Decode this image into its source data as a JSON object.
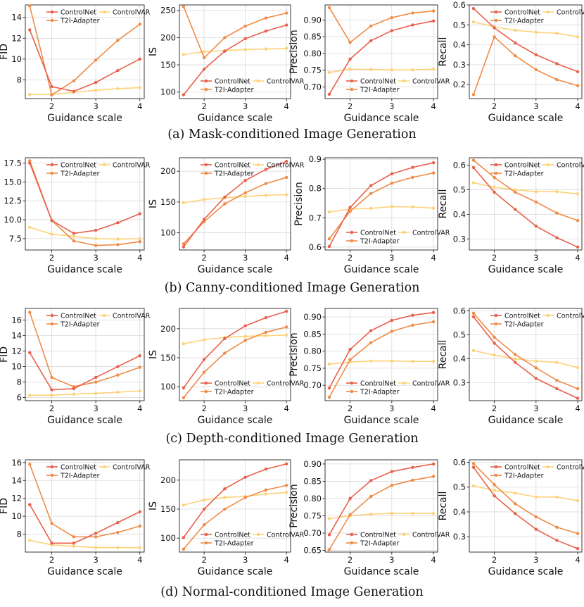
{
  "colors": {
    "ControlNet": "#e8604c",
    "T2I-Adapter": "#ef8b45",
    "ControlVAR": "#fdd27a"
  },
  "chart_data": [
    {
      "type": "line",
      "row": 0,
      "col": 0,
      "title": "",
      "xlabel": "Guidance scale",
      "ylabel": "FID",
      "x": [
        1.5,
        2,
        2.5,
        3,
        3.5,
        4
      ],
      "xlim": [
        1.4,
        4.1
      ],
      "xticks": [
        2,
        3,
        4
      ],
      "ylim": [
        6.2,
        15.2
      ],
      "yticks": [
        8,
        10,
        12,
        14
      ],
      "ytick_labels": [
        "8",
        "10",
        "12",
        "14"
      ],
      "legend": "top",
      "series": [
        {
          "name": "ControlNet",
          "values": [
            12.8,
            7.35,
            6.9,
            7.75,
            8.9,
            10.0
          ]
        },
        {
          "name": "T2I-Adapter",
          "values": [
            15.1,
            6.55,
            7.9,
            9.9,
            11.8,
            13.35
          ]
        },
        {
          "name": "ControlVAR",
          "values": [
            6.6,
            6.6,
            6.8,
            7.0,
            7.15,
            7.25
          ]
        }
      ]
    },
    {
      "type": "line",
      "row": 0,
      "col": 1,
      "title": "",
      "xlabel": "Guidance scale",
      "ylabel": "IS",
      "x": [
        1.5,
        2,
        2.5,
        3,
        3.5,
        4
      ],
      "xlim": [
        1.4,
        4.1
      ],
      "xticks": [
        2,
        3,
        4
      ],
      "ylim": [
        88,
        260
      ],
      "yticks": [
        100,
        150,
        200,
        250
      ],
      "ytick_labels": [
        "100",
        "150",
        "200",
        "250"
      ],
      "legend": "bottom",
      "series": [
        {
          "name": "ControlNet",
          "values": [
            95,
            142,
            175,
            198,
            212,
            223
          ]
        },
        {
          "name": "T2I-Adapter",
          "values": [
            257,
            163,
            200,
            221,
            236,
            245
          ]
        },
        {
          "name": "ControlVAR",
          "values": [
            169,
            174,
            176,
            178,
            179,
            180
          ]
        }
      ]
    },
    {
      "type": "line",
      "row": 0,
      "col": 2,
      "title": "",
      "xlabel": "Guidance scale",
      "ylabel": "Precision",
      "x": [
        1.5,
        2,
        2.5,
        3,
        3.5,
        4
      ],
      "xlim": [
        1.4,
        4.1
      ],
      "xticks": [
        2,
        3,
        4
      ],
      "ylim": [
        0.665,
        0.945
      ],
      "yticks": [
        0.7,
        0.75,
        0.8,
        0.85,
        0.9
      ],
      "ytick_labels": [
        "0.70",
        "0.75",
        "0.80",
        "0.85",
        "0.90"
      ],
      "legend": "bottom",
      "series": [
        {
          "name": "ControlNet",
          "values": [
            0.678,
            0.783,
            0.838,
            0.868,
            0.885,
            0.897
          ]
        },
        {
          "name": "T2I-Adapter",
          "values": [
            0.937,
            0.833,
            0.882,
            0.907,
            0.921,
            0.927
          ]
        },
        {
          "name": "ControlVAR",
          "values": [
            0.743,
            0.753,
            0.752,
            0.751,
            0.751,
            0.753
          ]
        }
      ]
    },
    {
      "type": "line",
      "row": 0,
      "col": 3,
      "title": "",
      "xlabel": "Guidance scale",
      "ylabel": "Recall",
      "x": [
        1.5,
        2,
        2.5,
        3,
        3.5,
        4
      ],
      "xlim": [
        1.4,
        4.1
      ],
      "xticks": [
        2,
        3,
        4
      ],
      "ylim": [
        0.13,
        0.6
      ],
      "yticks": [
        0.2,
        0.3,
        0.4,
        0.5,
        0.6
      ],
      "ytick_labels": [
        "0.2",
        "0.3",
        "0.4",
        "0.5",
        "0.6"
      ],
      "legend": "top",
      "series": [
        {
          "name": "ControlNet",
          "values": [
            0.582,
            0.485,
            0.41,
            0.35,
            0.305,
            0.265
          ]
        },
        {
          "name": "T2I-Adapter",
          "values": [
            0.15,
            0.44,
            0.345,
            0.275,
            0.225,
            0.195
          ]
        },
        {
          "name": "ControlVAR",
          "values": [
            0.515,
            0.49,
            0.473,
            0.463,
            0.458,
            0.44
          ]
        }
      ]
    },
    {
      "type": "line",
      "row": 1,
      "col": 0,
      "title": "",
      "xlabel": "Guidance scale",
      "ylabel": "FID",
      "x": [
        1.5,
        2,
        2.5,
        3,
        3.5,
        4
      ],
      "xlim": [
        1.4,
        4.1
      ],
      "xticks": [
        2,
        3,
        4
      ],
      "ylim": [
        6.0,
        18.2
      ],
      "yticks": [
        7.5,
        10,
        12.5,
        15,
        17.5
      ],
      "ytick_labels": [
        "7.5",
        "10.0",
        "12.5",
        "15.0",
        "17.5"
      ],
      "legend": "top",
      "series": [
        {
          "name": "ControlNet",
          "values": [
            17.5,
            9.9,
            8.2,
            8.6,
            9.6,
            10.8
          ]
        },
        {
          "name": "T2I-Adapter",
          "values": [
            17.8,
            9.9,
            7.2,
            6.6,
            6.7,
            7.1
          ]
        },
        {
          "name": "ControlVAR",
          "values": [
            9.0,
            8.1,
            7.8,
            7.5,
            7.45,
            7.5
          ]
        }
      ]
    },
    {
      "type": "line",
      "row": 1,
      "col": 1,
      "title": "",
      "xlabel": "Guidance scale",
      "ylabel": "IS",
      "x": [
        1.5,
        2,
        2.5,
        3,
        3.5,
        4
      ],
      "xlim": [
        1.4,
        4.1
      ],
      "xticks": [
        2,
        3,
        4
      ],
      "ylim": [
        72,
        222
      ],
      "yticks": [
        100,
        150,
        200
      ],
      "ytick_labels": [
        "100",
        "150",
        "200"
      ],
      "legend": "top",
      "series": [
        {
          "name": "ControlNet",
          "values": [
            77,
            122,
            158,
            185,
            203,
            216
          ]
        },
        {
          "name": "T2I-Adapter",
          "values": [
            82,
            118,
            147,
            165,
            180,
            190
          ]
        },
        {
          "name": "ControlVAR",
          "values": [
            149,
            154,
            157,
            159,
            161,
            162
          ]
        }
      ]
    },
    {
      "type": "line",
      "row": 1,
      "col": 2,
      "title": "",
      "xlabel": "Guidance scale",
      "ylabel": "Precision",
      "x": [
        1.5,
        2,
        2.5,
        3,
        3.5,
        4
      ],
      "xlim": [
        1.4,
        4.1
      ],
      "xticks": [
        2,
        3,
        4
      ],
      "ylim": [
        0.59,
        0.905
      ],
      "yticks": [
        0.6,
        0.7,
        0.8,
        0.9
      ],
      "ytick_labels": [
        "0.6",
        "0.7",
        "0.8",
        "0.9"
      ],
      "legend": "bottom",
      "series": [
        {
          "name": "ControlNet",
          "values": [
            0.602,
            0.735,
            0.81,
            0.85,
            0.872,
            0.888
          ]
        },
        {
          "name": "T2I-Adapter",
          "values": [
            0.628,
            0.722,
            0.783,
            0.818,
            0.838,
            0.853
          ]
        },
        {
          "name": "ControlVAR",
          "values": [
            0.72,
            0.73,
            0.732,
            0.738,
            0.737,
            0.733
          ]
        }
      ]
    },
    {
      "type": "line",
      "row": 1,
      "col": 3,
      "title": "",
      "xlabel": "Guidance scale",
      "ylabel": "Recall",
      "x": [
        1.5,
        2,
        2.5,
        3,
        3.5,
        4
      ],
      "xlim": [
        1.4,
        4.1
      ],
      "xticks": [
        2,
        3,
        4
      ],
      "ylim": [
        0.255,
        0.63
      ],
      "yticks": [
        0.3,
        0.4,
        0.5,
        0.6
      ],
      "ytick_labels": [
        "0.3",
        "0.4",
        "0.5",
        "0.6"
      ],
      "legend": "top",
      "series": [
        {
          "name": "ControlNet",
          "values": [
            0.59,
            0.49,
            0.42,
            0.352,
            0.305,
            0.267
          ]
        },
        {
          "name": "T2I-Adapter",
          "values": [
            0.62,
            0.55,
            0.49,
            0.45,
            0.405,
            0.375
          ]
        },
        {
          "name": "ControlVAR",
          "values": [
            0.528,
            0.51,
            0.5,
            0.492,
            0.492,
            0.483
          ]
        }
      ]
    },
    {
      "type": "line",
      "row": 2,
      "col": 0,
      "title": "",
      "xlabel": "Guidance scale",
      "ylabel": "FID",
      "x": [
        1.5,
        2,
        2.5,
        3,
        3.5,
        4
      ],
      "xlim": [
        1.4,
        4.1
      ],
      "xticks": [
        2,
        3,
        4
      ],
      "ylim": [
        5.6,
        17.5
      ],
      "yticks": [
        6,
        8,
        10,
        12,
        14,
        16
      ],
      "ytick_labels": [
        "6",
        "8",
        "10",
        "12",
        "14",
        "16"
      ],
      "legend": "top",
      "series": [
        {
          "name": "ControlNet",
          "values": [
            11.8,
            7.0,
            7.15,
            8.6,
            10.0,
            11.4
          ]
        },
        {
          "name": "T2I-Adapter",
          "values": [
            17.0,
            8.6,
            7.4,
            8.0,
            8.9,
            9.9
          ]
        },
        {
          "name": "ControlVAR",
          "values": [
            6.3,
            6.3,
            6.45,
            6.55,
            6.7,
            6.85
          ]
        }
      ]
    },
    {
      "type": "line",
      "row": 2,
      "col": 1,
      "title": "",
      "xlabel": "Guidance scale",
      "ylabel": "IS",
      "x": [
        1.5,
        2,
        2.5,
        3,
        3.5,
        4
      ],
      "xlim": [
        1.4,
        4.1
      ],
      "xticks": [
        2,
        3,
        4
      ],
      "ylim": [
        76,
        235
      ],
      "yticks": [
        100,
        150,
        200
      ],
      "ytick_labels": [
        "100",
        "150",
        "200"
      ],
      "legend": "bottom",
      "series": [
        {
          "name": "ControlNet",
          "values": [
            98,
            147,
            183,
            205,
            219,
            230
          ]
        },
        {
          "name": "T2I-Adapter",
          "values": [
            81,
            125,
            158,
            180,
            194,
            203
          ]
        },
        {
          "name": "ControlVAR",
          "values": [
            174,
            181,
            185,
            187,
            188,
            189
          ]
        }
      ]
    },
    {
      "type": "line",
      "row": 2,
      "col": 2,
      "title": "",
      "xlabel": "Guidance scale",
      "ylabel": "Precision",
      "x": [
        1.5,
        2,
        2.5,
        3,
        3.5,
        4
      ],
      "xlim": [
        1.4,
        4.1
      ],
      "xticks": [
        2,
        3,
        4
      ],
      "ylim": [
        0.655,
        0.925
      ],
      "yticks": [
        0.7,
        0.75,
        0.8,
        0.85,
        0.9
      ],
      "ytick_labels": [
        "0.70",
        "0.75",
        "0.80",
        "0.85",
        "0.90"
      ],
      "legend": "bottom",
      "series": [
        {
          "name": "ControlNet",
          "values": [
            0.692,
            0.805,
            0.86,
            0.89,
            0.905,
            0.913
          ]
        },
        {
          "name": "T2I-Adapter",
          "values": [
            0.665,
            0.775,
            0.825,
            0.858,
            0.876,
            0.886
          ]
        },
        {
          "name": "ControlVAR",
          "values": [
            0.762,
            0.768,
            0.771,
            0.771,
            0.77,
            0.77
          ]
        }
      ]
    },
    {
      "type": "line",
      "row": 2,
      "col": 3,
      "title": "",
      "xlabel": "Guidance scale",
      "ylabel": "Recall",
      "x": [
        1.5,
        2,
        2.5,
        3,
        3.5,
        4
      ],
      "xlim": [
        1.4,
        4.1
      ],
      "xticks": [
        2,
        3,
        4
      ],
      "ylim": [
        0.225,
        0.61
      ],
      "yticks": [
        0.3,
        0.4,
        0.5,
        0.6
      ],
      "ytick_labels": [
        "0.3",
        "0.4",
        "0.5",
        "0.6"
      ],
      "legend": "top",
      "series": [
        {
          "name": "ControlNet",
          "values": [
            0.575,
            0.465,
            0.385,
            0.318,
            0.275,
            0.235
          ]
        },
        {
          "name": "T2I-Adapter",
          "values": [
            0.59,
            0.49,
            0.418,
            0.362,
            0.31,
            0.275
          ]
        },
        {
          "name": "ControlVAR",
          "values": [
            0.434,
            0.415,
            0.4,
            0.39,
            0.385,
            0.363
          ]
        }
      ]
    },
    {
      "type": "line",
      "row": 3,
      "col": 0,
      "title": "",
      "xlabel": "Guidance scale",
      "ylabel": "FID",
      "x": [
        1.5,
        2,
        2.5,
        3,
        3.5,
        4
      ],
      "xlim": [
        1.4,
        4.1
      ],
      "xticks": [
        2,
        3,
        4
      ],
      "ylim": [
        6.0,
        16.3
      ],
      "yticks": [
        8,
        10,
        12,
        14,
        16
      ],
      "ytick_labels": [
        "8",
        "10",
        "12",
        "14",
        "16"
      ],
      "legend": "top",
      "series": [
        {
          "name": "ControlNet",
          "values": [
            11.3,
            7.0,
            7.0,
            8.1,
            9.3,
            10.5
          ]
        },
        {
          "name": "T2I-Adapter",
          "values": [
            15.8,
            9.2,
            7.7,
            7.7,
            8.2,
            8.9
          ]
        },
        {
          "name": "ControlVAR",
          "values": [
            7.3,
            6.8,
            6.65,
            6.5,
            6.5,
            6.5
          ]
        }
      ]
    },
    {
      "type": "line",
      "row": 3,
      "col": 1,
      "title": "",
      "xlabel": "Guidance scale",
      "ylabel": "IS",
      "x": [
        1.5,
        2,
        2.5,
        3,
        3.5,
        4
      ],
      "xlim": [
        1.4,
        4.1
      ],
      "xticks": [
        2,
        3,
        4
      ],
      "ylim": [
        76,
        235
      ],
      "yticks": [
        100,
        150,
        200
      ],
      "ytick_labels": [
        "100",
        "150",
        "200"
      ],
      "legend": "bottom",
      "series": [
        {
          "name": "ControlNet",
          "values": [
            101,
            150,
            185,
            205,
            219,
            228
          ]
        },
        {
          "name": "T2I-Adapter",
          "values": [
            81,
            123,
            150,
            170,
            183,
            191
          ]
        },
        {
          "name": "ControlVAR",
          "values": [
            157,
            166,
            170,
            172,
            176,
            179
          ]
        }
      ]
    },
    {
      "type": "line",
      "row": 3,
      "col": 2,
      "title": "",
      "xlabel": "Guidance scale",
      "ylabel": "Precision",
      "x": [
        1.5,
        2,
        2.5,
        3,
        3.5,
        4
      ],
      "xlim": [
        1.4,
        4.1
      ],
      "xticks": [
        2,
        3,
        4
      ],
      "ylim": [
        0.645,
        0.912
      ],
      "yticks": [
        0.65,
        0.7,
        0.75,
        0.8,
        0.85,
        0.9
      ],
      "ytick_labels": [
        "0.65",
        "0.70",
        "0.75",
        "0.80",
        "0.85",
        "0.90"
      ],
      "legend": "bottom",
      "series": [
        {
          "name": "ControlNet",
          "values": [
            0.695,
            0.8,
            0.852,
            0.878,
            0.89,
            0.9
          ]
        },
        {
          "name": "T2I-Adapter",
          "values": [
            0.652,
            0.753,
            0.806,
            0.838,
            0.853,
            0.864
          ]
        },
        {
          "name": "ControlVAR",
          "values": [
            0.742,
            0.75,
            0.755,
            0.757,
            0.757,
            0.757
          ]
        }
      ]
    },
    {
      "type": "line",
      "row": 3,
      "col": 3,
      "title": "",
      "xlabel": "Guidance scale",
      "ylabel": "Recall",
      "x": [
        1.5,
        2,
        2.5,
        3,
        3.5,
        4
      ],
      "xlim": [
        1.4,
        4.1
      ],
      "xticks": [
        2,
        3,
        4
      ],
      "ylim": [
        0.238,
        0.61
      ],
      "yticks": [
        0.3,
        0.4,
        0.5,
        0.6
      ],
      "ytick_labels": [
        "0.3",
        "0.4",
        "0.5",
        "0.6"
      ],
      "legend": "top",
      "series": [
        {
          "name": "ControlNet",
          "values": [
            0.58,
            0.465,
            0.393,
            0.33,
            0.285,
            0.252
          ]
        },
        {
          "name": "T2I-Adapter",
          "values": [
            0.595,
            0.51,
            0.433,
            0.38,
            0.338,
            0.313
          ]
        },
        {
          "name": "ControlVAR",
          "values": [
            0.505,
            0.487,
            0.476,
            0.46,
            0.46,
            0.445
          ]
        }
      ]
    }
  ],
  "captions": [
    "(a) Mask-conditioned Image Generation",
    "(b) Canny-conditioned Image Generation",
    "(c) Depth-conditioned Image Generation",
    "(d) Normal-conditioned Image Generation"
  ]
}
